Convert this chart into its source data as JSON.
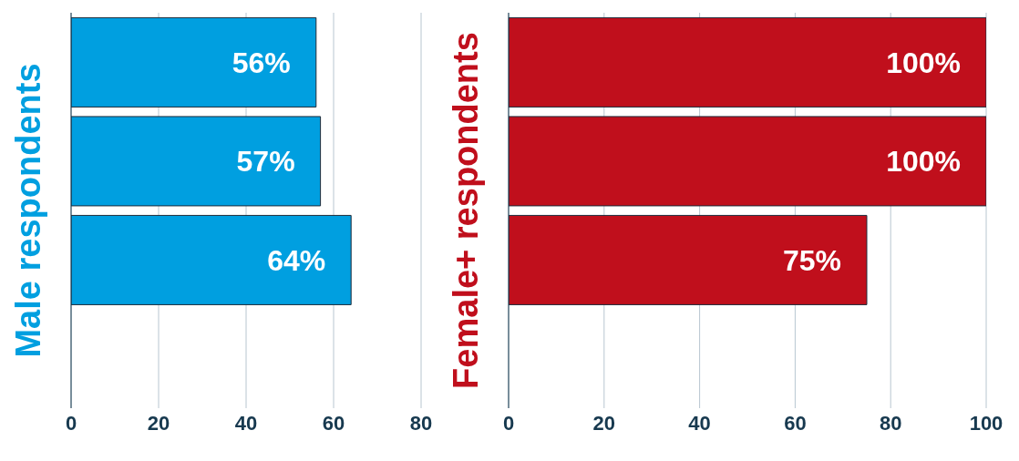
{
  "chart_data": [
    {
      "type": "bar",
      "orientation": "horizontal",
      "ylabel": "Male respondents",
      "categories": [
        null,
        null,
        null,
        null
      ],
      "values": [
        56,
        57,
        64,
        null
      ],
      "value_labels": [
        "56%",
        "57%",
        "64%",
        null
      ],
      "color": "#009fe0",
      "xlim": [
        0,
        80
      ],
      "xticks": [
        0,
        20,
        40,
        60,
        80
      ],
      "grid": "x",
      "tick_labels": "x"
    },
    {
      "type": "bar",
      "orientation": "horizontal",
      "ylabel": "Female+ respondents",
      "categories": [
        null,
        null,
        null,
        null
      ],
      "values": [
        100,
        100,
        75,
        null
      ],
      "value_labels": [
        "100%",
        "100%",
        "75%",
        null
      ],
      "color": "#c00f1c",
      "xlim": [
        0,
        100
      ],
      "xticks": [
        0,
        20,
        40,
        60,
        80,
        100
      ],
      "grid": "x",
      "tick_labels": "x"
    }
  ]
}
